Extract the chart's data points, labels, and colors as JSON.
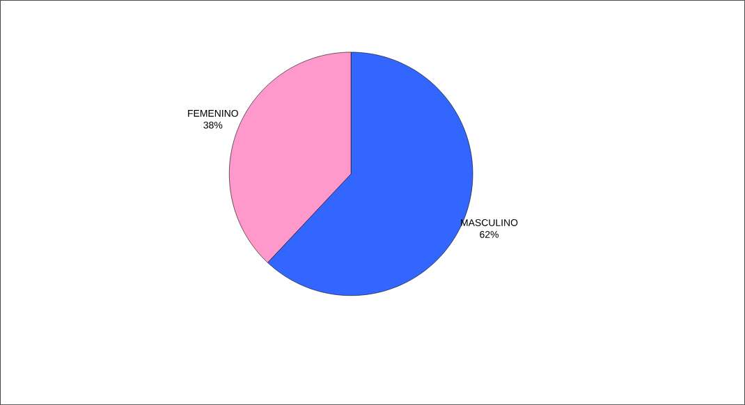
{
  "chart_data": {
    "type": "pie",
    "categories": [
      "MASCULINO",
      "FEMENINO"
    ],
    "values": [
      62,
      38
    ],
    "value_labels": [
      "62%",
      "38%"
    ],
    "colors": [
      "#3366ff",
      "#ff99cc"
    ]
  }
}
